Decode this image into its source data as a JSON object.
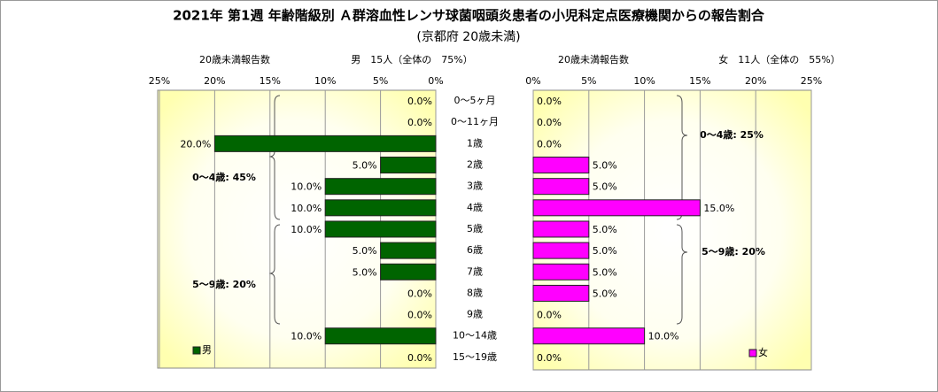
{
  "chart_data": [
    {
      "type": "bar",
      "title": "2021年 第1週 年齢階級別 Ａ群溶血性レンサ球菌咽頭炎患者の小児科定点医療機関からの報告割合",
      "subtitle": "(京都府 20歳未満)",
      "categories": [
        "0～5ヶ月",
        "0～11ヶ月",
        "1歳",
        "2歳",
        "3歳",
        "4歳",
        "5歳",
        "6歳",
        "7歳",
        "8歳",
        "9歳",
        "10～14歳",
        "15～19歳"
      ],
      "axis_label": "20歳未満報告数",
      "summary": "男　15人（全体の　75%）",
      "series": [
        {
          "name": "男",
          "color": "#006400",
          "values": [
            0,
            0,
            20,
            5,
            10,
            10,
            10,
            5,
            5,
            0,
            0,
            10,
            0
          ],
          "value_labels": [
            "0.0%",
            "0.0%",
            "20.0%",
            "5.0%",
            "10.0%",
            "10.0%",
            "10.0%",
            "5.0%",
            "5.0%",
            "0.0%",
            "0.0%",
            "10.0%",
            "0.0%"
          ]
        }
      ],
      "xlim": [
        25,
        0
      ],
      "xticks": [
        {
          "value": 25,
          "label": "25%"
        },
        {
          "value": 20,
          "label": "20%"
        },
        {
          "value": 15,
          "label": "15%"
        },
        {
          "value": 10,
          "label": "10%"
        },
        {
          "value": 5,
          "label": "5%"
        },
        {
          "value": 0,
          "label": "0%"
        }
      ],
      "grid": true,
      "annotations": [
        "0～4歳: 45%",
        "5～9歳: 20%"
      ]
    },
    {
      "type": "bar",
      "axis_label": "20歳未満報告数",
      "summary": "女　11人（全体の　55%）",
      "series": [
        {
          "name": "女",
          "color": "#ff00ff",
          "values": [
            0,
            0,
            0,
            5,
            5,
            15,
            5,
            5,
            5,
            5,
            0,
            10,
            0
          ],
          "value_labels": [
            "0.0%",
            "0.0%",
            "0.0%",
            "5.0%",
            "5.0%",
            "15.0%",
            "5.0%",
            "5.0%",
            "5.0%",
            "5.0%",
            "0.0%",
            "10.0%",
            "0.0%"
          ]
        }
      ],
      "xlim": [
        0,
        25
      ],
      "xticks": [
        {
          "value": 0,
          "label": "0%"
        },
        {
          "value": 5,
          "label": "5%"
        },
        {
          "value": 10,
          "label": "10%"
        },
        {
          "value": 15,
          "label": "15%"
        },
        {
          "value": 20,
          "label": "20%"
        },
        {
          "value": 25,
          "label": "25%"
        }
      ],
      "grid": true,
      "annotations": [
        "0～4歳: 25%",
        "5～9歳: 20%"
      ]
    }
  ]
}
